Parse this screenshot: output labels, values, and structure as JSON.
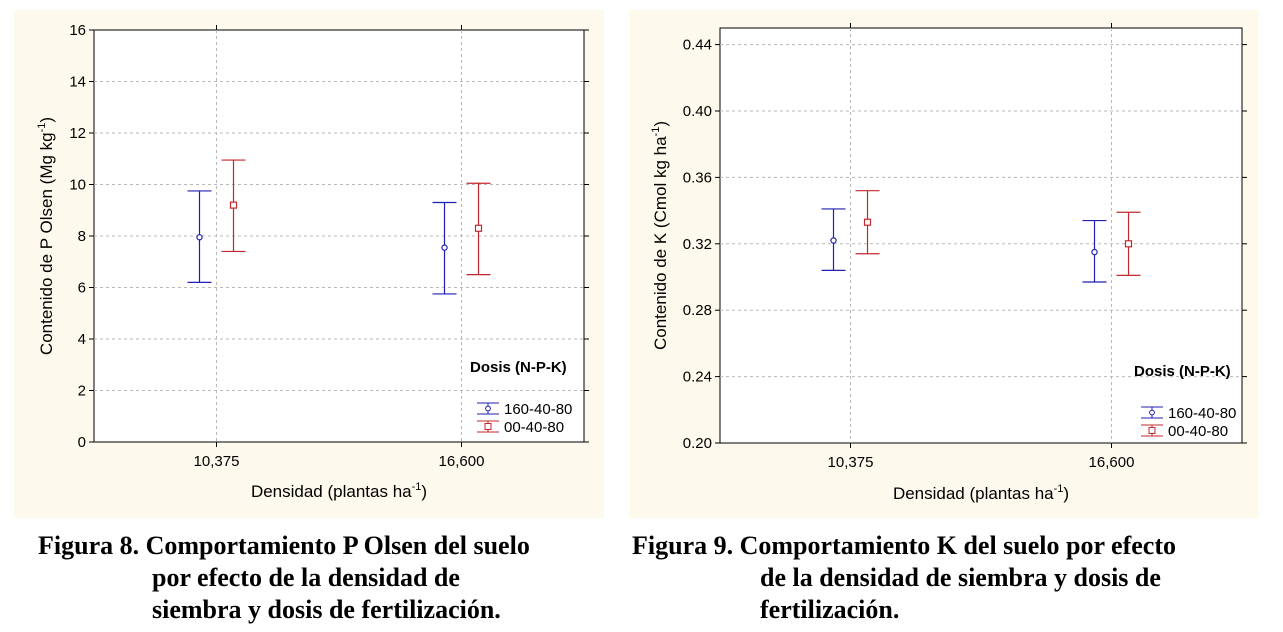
{
  "chart_data": [
    {
      "type": "scatter",
      "title": "",
      "xlabel_main": "Densidad (plantas ha",
      "xlabel_sup": "-1",
      "xlabel_tail": ")",
      "ylabel_main": "Contenido de P Olsen (Mg kg",
      "ylabel_sup": "-1",
      "ylabel_tail": ")",
      "categories": [
        "10,375",
        "16,600"
      ],
      "ylim": [
        0,
        16
      ],
      "yticks": [
        "0",
        "2",
        "4",
        "6",
        "8",
        "10",
        "12",
        "14",
        "16"
      ],
      "grid": true,
      "legend_title": "Dosis (N-P-K)",
      "legend_position": "bottom-right",
      "series": [
        {
          "name": "160-40-80",
          "color": "#1f1fb4",
          "marker": "circle",
          "values": [
            7.95,
            7.55
          ],
          "lower": [
            6.2,
            5.75
          ],
          "upper": [
            9.75,
            9.3
          ]
        },
        {
          "name": "00-40-80",
          "color": "#c0282d",
          "marker": "square",
          "values": [
            9.2,
            8.3
          ],
          "lower": [
            7.4,
            6.5
          ],
          "upper": [
            10.95,
            10.05
          ]
        }
      ]
    },
    {
      "type": "scatter",
      "title": "",
      "xlabel_main": "Densidad (plantas ha",
      "xlabel_sup": "-1",
      "xlabel_tail": ")",
      "ylabel_main": "Contenido de K (Cmol kg ha",
      "ylabel_sup": "-1",
      "ylabel_tail": ")",
      "categories": [
        "10,375",
        "16,600"
      ],
      "ylim": [
        0.2,
        0.45
      ],
      "yticks": [
        "0.20",
        "0.24",
        "0.28",
        "0.32",
        "0.36",
        "0.40",
        "0.44"
      ],
      "grid": true,
      "legend_title": "Dosis (N-P-K)",
      "legend_position": "bottom-right",
      "series": [
        {
          "name": "160-40-80",
          "color": "#1f1fb4",
          "marker": "circle",
          "values": [
            0.322,
            0.315
          ],
          "lower": [
            0.304,
            0.297
          ],
          "upper": [
            0.341,
            0.334
          ]
        },
        {
          "name": "00-40-80",
          "color": "#c0282d",
          "marker": "square",
          "values": [
            0.333,
            0.32
          ],
          "lower": [
            0.314,
            0.301
          ],
          "upper": [
            0.352,
            0.339
          ]
        }
      ]
    }
  ],
  "captions": {
    "left": {
      "line1": "Figura 8. Comportamiento P Olsen del suelo",
      "line2": "por efecto de la densidad de",
      "line3": "siembra y dosis de fertilización."
    },
    "right": {
      "line1": "Figura 9. Comportamiento K del suelo por efecto",
      "line2": "de la densidad de siembra y dosis de",
      "line3": "fertilización."
    }
  }
}
